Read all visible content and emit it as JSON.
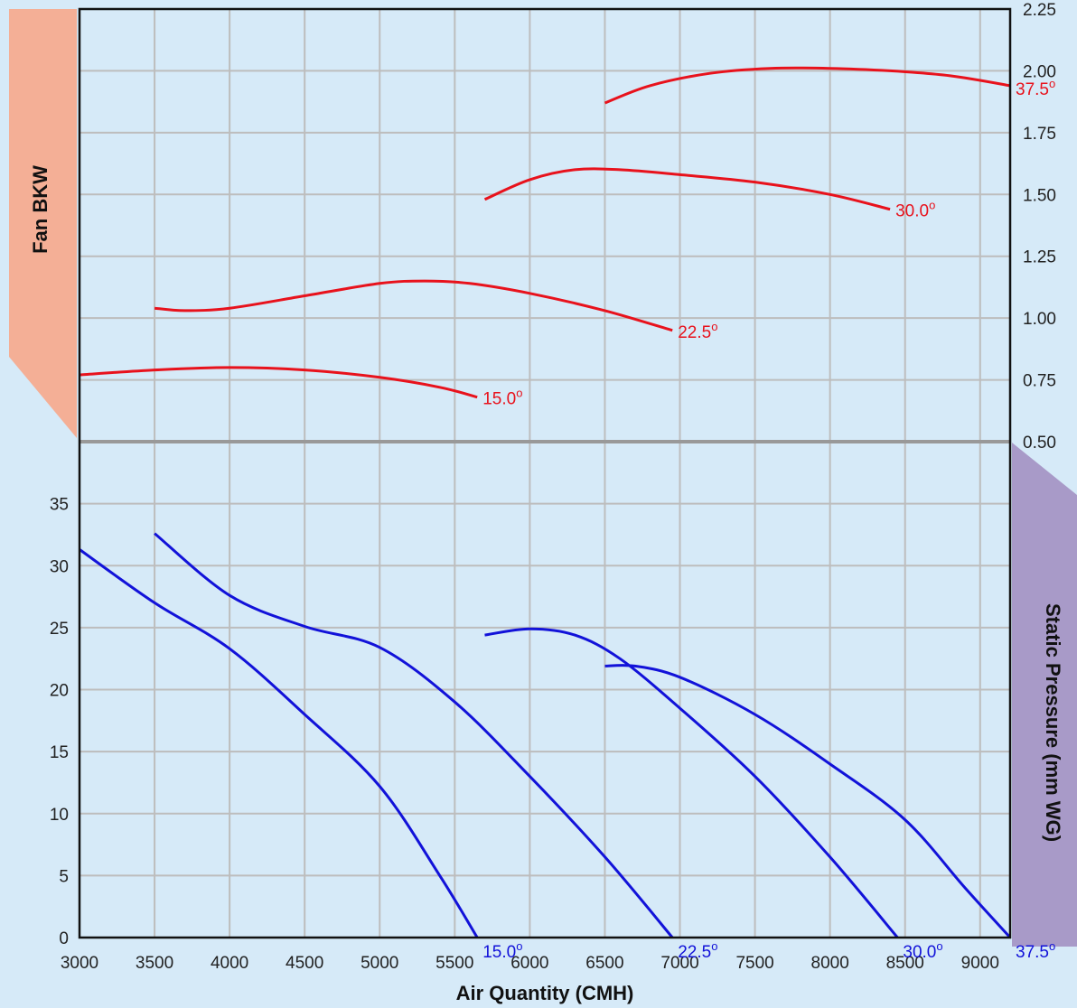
{
  "colors": {
    "background": "#d6eaf8",
    "grid": "#bdbdbd",
    "separator": "#999999",
    "power_curves": "#e8121c",
    "pressure_curves": "#1212d9",
    "left_band": "#f4af96",
    "right_band": "#a89ac8"
  },
  "chart_data": [
    {
      "type": "line",
      "xlabel": "Air Quantity (CMH)",
      "ylabel": "Fan BKW",
      "y_axis_side": "right",
      "xlim": [
        3000,
        9200
      ],
      "ylim": [
        0.5,
        2.25
      ],
      "x_ticks": [
        "3000",
        "3500",
        "4000",
        "4500",
        "5000",
        "5500",
        "6000",
        "6500",
        "7000",
        "7500",
        "8000",
        "8500",
        "9000"
      ],
      "y_ticks": [
        "0.50",
        "0.75",
        "1.00",
        "1.25",
        "1.50",
        "1.75",
        "2.00",
        "2.25"
      ],
      "grid": true,
      "series": [
        {
          "name": "15.0",
          "end_label": "15.0°",
          "points": [
            [
              3000,
              0.77
            ],
            [
              3500,
              0.79
            ],
            [
              4000,
              0.8
            ],
            [
              4500,
              0.79
            ],
            [
              5000,
              0.76
            ],
            [
              5400,
              0.72
            ],
            [
              5650,
              0.68
            ]
          ]
        },
        {
          "name": "22.5",
          "end_label": "22.5°",
          "points": [
            [
              3500,
              1.04
            ],
            [
              3700,
              1.03
            ],
            [
              4000,
              1.04
            ],
            [
              4500,
              1.09
            ],
            [
              5000,
              1.14
            ],
            [
              5300,
              1.15
            ],
            [
              5600,
              1.14
            ],
            [
              6000,
              1.1
            ],
            [
              6500,
              1.03
            ],
            [
              6950,
              0.95
            ]
          ]
        },
        {
          "name": "30.0",
          "end_label": "30.0°",
          "points": [
            [
              5700,
              1.48
            ],
            [
              6000,
              1.56
            ],
            [
              6300,
              1.6
            ],
            [
              6600,
              1.6
            ],
            [
              7000,
              1.58
            ],
            [
              7500,
              1.55
            ],
            [
              8000,
              1.5
            ],
            [
              8400,
              1.44
            ]
          ]
        },
        {
          "name": "37.5",
          "end_label": "37.5°",
          "points": [
            [
              6500,
              1.87
            ],
            [
              6800,
              1.94
            ],
            [
              7200,
              1.99
            ],
            [
              7600,
              2.01
            ],
            [
              8000,
              2.01
            ],
            [
              8400,
              2.0
            ],
            [
              8800,
              1.98
            ],
            [
              9200,
              1.94
            ]
          ]
        }
      ]
    },
    {
      "type": "line",
      "xlabel": "Air Quantity (CMH)",
      "ylabel": "Static Pressure (mm WG)",
      "y_axis_side": "left",
      "xlim": [
        3000,
        9200
      ],
      "ylim": [
        0,
        40
      ],
      "x_ticks": [
        "3000",
        "3500",
        "4000",
        "4500",
        "5000",
        "5500",
        "6000",
        "6500",
        "7000",
        "7500",
        "8000",
        "8500",
        "9000"
      ],
      "y_ticks": [
        "0",
        "5",
        "10",
        "15",
        "20",
        "25",
        "30",
        "35"
      ],
      "grid": true,
      "series": [
        {
          "name": "15.0",
          "end_label": "15.0°",
          "points": [
            [
              3000,
              31.3
            ],
            [
              3500,
              27.0
            ],
            [
              4000,
              23.3
            ],
            [
              4500,
              18.0
            ],
            [
              5000,
              12.2
            ],
            [
              5400,
              5.0
            ],
            [
              5650,
              0
            ]
          ]
        },
        {
          "name": "22.5",
          "end_label": "22.5°",
          "points": [
            [
              3500,
              32.6
            ],
            [
              4000,
              27.6
            ],
            [
              4500,
              25.1
            ],
            [
              5000,
              23.4
            ],
            [
              5500,
              19.0
            ],
            [
              6000,
              13.0
            ],
            [
              6500,
              6.5
            ],
            [
              6950,
              0
            ]
          ]
        },
        {
          "name": "30.0",
          "end_label": "30.0°",
          "points": [
            [
              5700,
              24.4
            ],
            [
              6000,
              24.9
            ],
            [
              6300,
              24.4
            ],
            [
              6600,
              22.5
            ],
            [
              7000,
              18.5
            ],
            [
              7500,
              13.0
            ],
            [
              8000,
              6.5
            ],
            [
              8450,
              0
            ]
          ]
        },
        {
          "name": "37.5",
          "end_label": "37.5°",
          "points": [
            [
              6500,
              21.9
            ],
            [
              6700,
              21.9
            ],
            [
              7000,
              21.0
            ],
            [
              7500,
              18.0
            ],
            [
              8000,
              14.0
            ],
            [
              8500,
              9.5
            ],
            [
              8900,
              4.0
            ],
            [
              9200,
              0
            ]
          ]
        }
      ]
    }
  ]
}
